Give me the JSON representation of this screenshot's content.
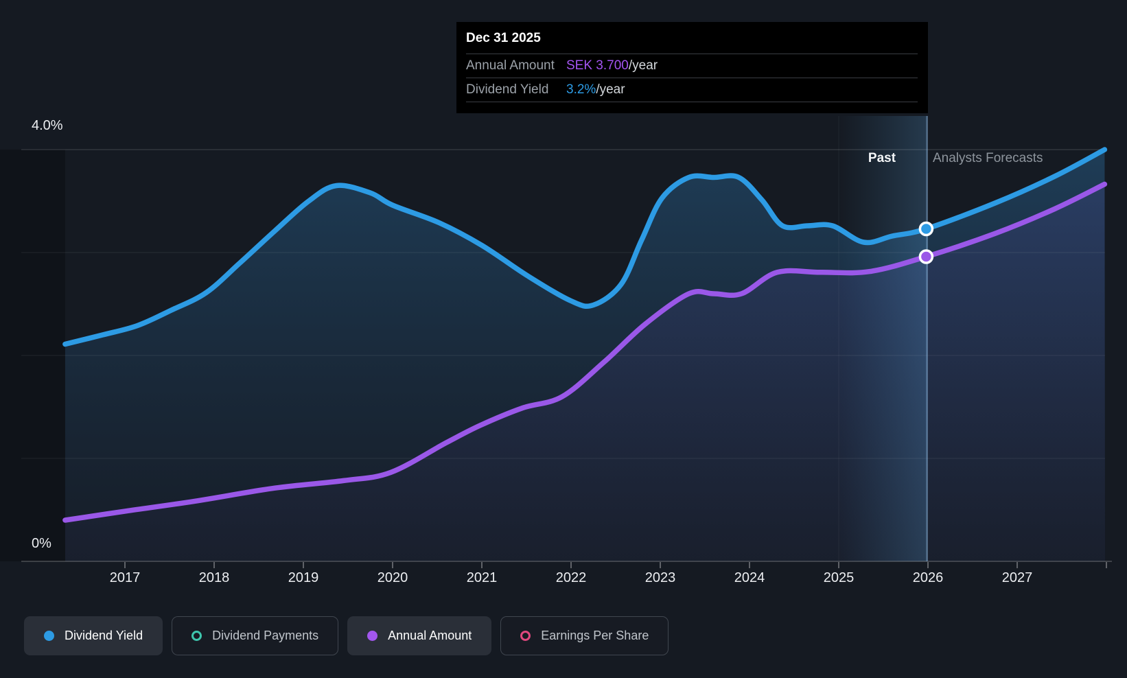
{
  "page": {
    "background": "#151A22"
  },
  "annotations": {
    "past": "Past",
    "analysts_forecasts": "Analysts Forecasts"
  },
  "tooltip": {
    "date": "Dec 31 2025",
    "rows": [
      {
        "label": "Annual Amount",
        "value": "SEK 3.700",
        "suffix": "/year",
        "value_color": "#A455F2"
      },
      {
        "label": "Dividend Yield",
        "value": "3.2%",
        "suffix": "/year",
        "value_color": "#2D9BE4"
      }
    ]
  },
  "legend": {
    "items": [
      {
        "label": "Dividend Yield",
        "color": "#2D9BE4",
        "active": true,
        "shape": "dot"
      },
      {
        "label": "Dividend Payments",
        "color": "#3EC6AD",
        "active": false,
        "shape": "ring"
      },
      {
        "label": "Annual Amount",
        "color": "#A257EE",
        "active": true,
        "shape": "dot"
      },
      {
        "label": "Earnings Per Share",
        "color": "#E0487E",
        "active": false,
        "shape": "ring"
      }
    ]
  },
  "chart_data": {
    "type": "area",
    "title": "Dividend yield and annual dividend amount: past and analysts forecasts",
    "grid": "horizontal",
    "legend_position": "bottom-left",
    "x_axis": {
      "tick_labels": [
        "2017",
        "2018",
        "2019",
        "2020",
        "2021",
        "2022",
        "2023",
        "2024",
        "2025",
        "2026",
        "2027"
      ],
      "tick_years": [
        2017,
        2018,
        2019,
        2020,
        2021,
        2022,
        2023,
        2024,
        2025,
        2026,
        2027
      ],
      "range_years": [
        2016.33,
        2027.98
      ]
    },
    "y_axis": {
      "top_label": "4.0%",
      "bottom_label": "0%",
      "range_pct": [
        0,
        4.0
      ],
      "gridline_pcts": [
        0,
        1,
        2,
        3,
        4
      ]
    },
    "series": [
      {
        "name": "Dividend Yield",
        "unit": "percent_per_year",
        "color": "#2D9BE4",
        "points": [
          [
            2016.33,
            2.11
          ],
          [
            2016.75,
            2.2
          ],
          [
            2017.14,
            2.29
          ],
          [
            2017.52,
            2.44
          ],
          [
            2017.91,
            2.61
          ],
          [
            2018.29,
            2.9
          ],
          [
            2018.68,
            3.21
          ],
          [
            2019.06,
            3.5
          ],
          [
            2019.37,
            3.65
          ],
          [
            2019.75,
            3.58
          ],
          [
            2020.0,
            3.46
          ],
          [
            2020.52,
            3.29
          ],
          [
            2021.0,
            3.07
          ],
          [
            2021.52,
            2.77
          ],
          [
            2022.0,
            2.53
          ],
          [
            2022.25,
            2.49
          ],
          [
            2022.56,
            2.69
          ],
          [
            2022.79,
            3.12
          ],
          [
            2023.02,
            3.53
          ],
          [
            2023.32,
            3.73
          ],
          [
            2023.6,
            3.73
          ],
          [
            2023.88,
            3.73
          ],
          [
            2024.14,
            3.51
          ],
          [
            2024.37,
            3.26
          ],
          [
            2024.65,
            3.26
          ],
          [
            2024.93,
            3.26
          ],
          [
            2025.28,
            3.1
          ],
          [
            2025.6,
            3.16
          ],
          [
            2025.98,
            3.23
          ],
          [
            2026.75,
            3.48
          ],
          [
            2027.42,
            3.74
          ],
          [
            2027.98,
            4.0
          ]
        ]
      },
      {
        "name": "Annual Amount",
        "unit": "SEK_per_year",
        "color": "#9A58E8",
        "points": [
          [
            2016.33,
            0.5
          ],
          [
            2017.01,
            0.61
          ],
          [
            2017.78,
            0.73
          ],
          [
            2018.68,
            0.89
          ],
          [
            2019.45,
            0.98
          ],
          [
            2019.98,
            1.08
          ],
          [
            2020.6,
            1.44
          ],
          [
            2020.98,
            1.65
          ],
          [
            2021.45,
            1.86
          ],
          [
            2021.9,
            2.0
          ],
          [
            2022.37,
            2.42
          ],
          [
            2022.83,
            2.88
          ],
          [
            2023.32,
            3.25
          ],
          [
            2023.6,
            3.25
          ],
          [
            2023.91,
            3.25
          ],
          [
            2024.31,
            3.51
          ],
          [
            2024.8,
            3.51
          ],
          [
            2025.35,
            3.52
          ],
          [
            2025.98,
            3.7
          ],
          [
            2026.75,
            3.98
          ],
          [
            2027.42,
            4.28
          ],
          [
            2027.98,
            4.58
          ]
        ]
      }
    ],
    "markers": [
      {
        "series": 0,
        "x": 2025.98,
        "y": 3.23
      },
      {
        "series": 1,
        "x": 2025.98,
        "y": 3.7
      }
    ],
    "divider_year": 2025.99,
    "past_band_from_year": 2025.0
  }
}
